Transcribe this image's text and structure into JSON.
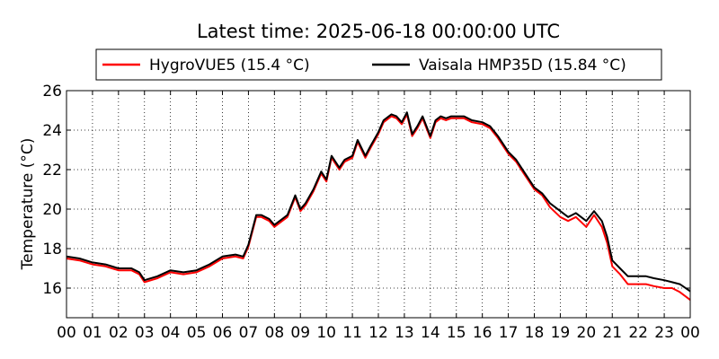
{
  "chart_data": {
    "type": "line",
    "title": "Latest time: 2025-06-18 00:00:00 UTC",
    "xlabel": "",
    "ylabel": "Temperature (°C)",
    "xlim": [
      0,
      24
    ],
    "ylim": [
      14.5,
      26
    ],
    "x_ticks": [
      "00",
      "01",
      "02",
      "03",
      "04",
      "05",
      "06",
      "07",
      "08",
      "09",
      "10",
      "11",
      "12",
      "13",
      "14",
      "15",
      "16",
      "17",
      "18",
      "19",
      "20",
      "21",
      "22",
      "23",
      "00"
    ],
    "y_ticks": [
      16,
      18,
      20,
      22,
      24,
      26
    ],
    "grid": true,
    "legend_position": "top",
    "x": [
      0,
      0.5,
      1,
      1.5,
      2,
      2.5,
      2.8,
      3,
      3.5,
      4,
      4.5,
      5,
      5.5,
      6,
      6.5,
      6.8,
      7,
      7.3,
      7.5,
      7.8,
      8,
      8.3,
      8.5,
      8.8,
      9,
      9.2,
      9.5,
      9.8,
      10,
      10.2,
      10.4,
      10.5,
      10.7,
      11,
      11.2,
      11.5,
      11.7,
      12,
      12.2,
      12.5,
      12.7,
      12.9,
      13.1,
      13.3,
      13.5,
      13.7,
      14,
      14.2,
      14.4,
      14.6,
      14.8,
      15,
      15.3,
      15.6,
      16,
      16.3,
      16.6,
      17,
      17.3,
      17.6,
      18,
      18.3,
      18.6,
      19,
      19.3,
      19.6,
      20,
      20.3,
      20.6,
      20.8,
      21,
      21.3,
      21.6,
      22,
      22.3,
      22.6,
      23,
      23.3,
      23.6,
      24
    ],
    "series": [
      {
        "name": "HygroVUE5 (15.4 °C)",
        "color": "#ff0000",
        "values": [
          17.5,
          17.4,
          17.2,
          17.1,
          16.9,
          16.9,
          16.7,
          16.3,
          16.5,
          16.8,
          16.7,
          16.8,
          17.1,
          17.5,
          17.6,
          17.5,
          18.1,
          19.6,
          19.6,
          19.4,
          19.1,
          19.4,
          19.6,
          20.6,
          19.9,
          20.2,
          20.9,
          21.8,
          21.4,
          22.6,
          22.2,
          22.0,
          22.4,
          22.6,
          23.4,
          22.6,
          23.1,
          23.8,
          24.4,
          24.7,
          24.6,
          24.3,
          24.8,
          23.7,
          24.1,
          24.6,
          23.6,
          24.4,
          24.6,
          24.5,
          24.6,
          24.6,
          24.6,
          24.4,
          24.3,
          24.1,
          23.6,
          22.8,
          22.4,
          21.8,
          21.0,
          20.7,
          20.1,
          19.6,
          19.4,
          19.6,
          19.1,
          19.7,
          19.1,
          18.3,
          17.1,
          16.7,
          16.2,
          16.2,
          16.2,
          16.1,
          16.0,
          16.0,
          15.8,
          15.4
        ]
      },
      {
        "name": "Vaisala HMP35D (15.84 °C)",
        "color": "#000000",
        "values": [
          17.6,
          17.5,
          17.3,
          17.2,
          17.0,
          17.0,
          16.8,
          16.4,
          16.6,
          16.9,
          16.8,
          16.9,
          17.2,
          17.6,
          17.7,
          17.6,
          18.2,
          19.7,
          19.7,
          19.5,
          19.2,
          19.5,
          19.7,
          20.7,
          20.0,
          20.3,
          21.0,
          21.9,
          21.5,
          22.7,
          22.3,
          22.1,
          22.5,
          22.7,
          23.5,
          22.7,
          23.2,
          23.9,
          24.5,
          24.8,
          24.7,
          24.4,
          24.9,
          23.8,
          24.2,
          24.7,
          23.7,
          24.5,
          24.7,
          24.6,
          24.7,
          24.7,
          24.7,
          24.5,
          24.4,
          24.2,
          23.7,
          22.9,
          22.5,
          21.9,
          21.1,
          20.8,
          20.3,
          19.9,
          19.6,
          19.8,
          19.4,
          19.9,
          19.4,
          18.6,
          17.4,
          17.0,
          16.6,
          16.6,
          16.6,
          16.5,
          16.4,
          16.3,
          16.2,
          15.84
        ]
      }
    ]
  }
}
